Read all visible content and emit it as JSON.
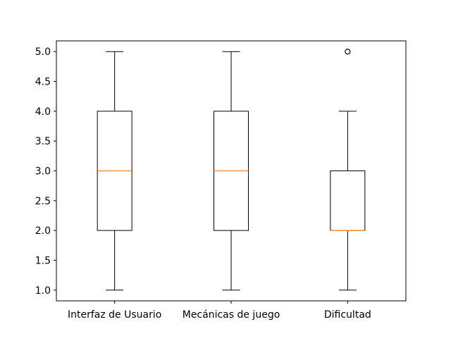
{
  "chart_data": {
    "type": "box",
    "title": "",
    "xlabel": "",
    "ylabel": "",
    "ylim": [
      0.82,
      5.18
    ],
    "yticks": [
      "1.0",
      "1.5",
      "2.0",
      "2.5",
      "3.0",
      "3.5",
      "4.0",
      "4.5",
      "5.0"
    ],
    "categories": [
      "Interfaz de Usuario",
      "Mecánicas de juego",
      "Dificultad"
    ],
    "boxes": [
      {
        "whisker_low": 1.0,
        "q1": 2.0,
        "median": 3.0,
        "q3": 4.0,
        "whisker_high": 5.0,
        "outliers": []
      },
      {
        "whisker_low": 1.0,
        "q1": 2.0,
        "median": 3.0,
        "q3": 4.0,
        "whisker_high": 5.0,
        "outliers": []
      },
      {
        "whisker_low": 1.0,
        "q1": 2.0,
        "median": 2.0,
        "q3": 3.0,
        "whisker_high": 4.0,
        "outliers": [
          5.0
        ]
      }
    ],
    "grid": false,
    "colors": {
      "box": "#000000",
      "median": "#ff7f0e",
      "outlier": "#000000"
    }
  }
}
